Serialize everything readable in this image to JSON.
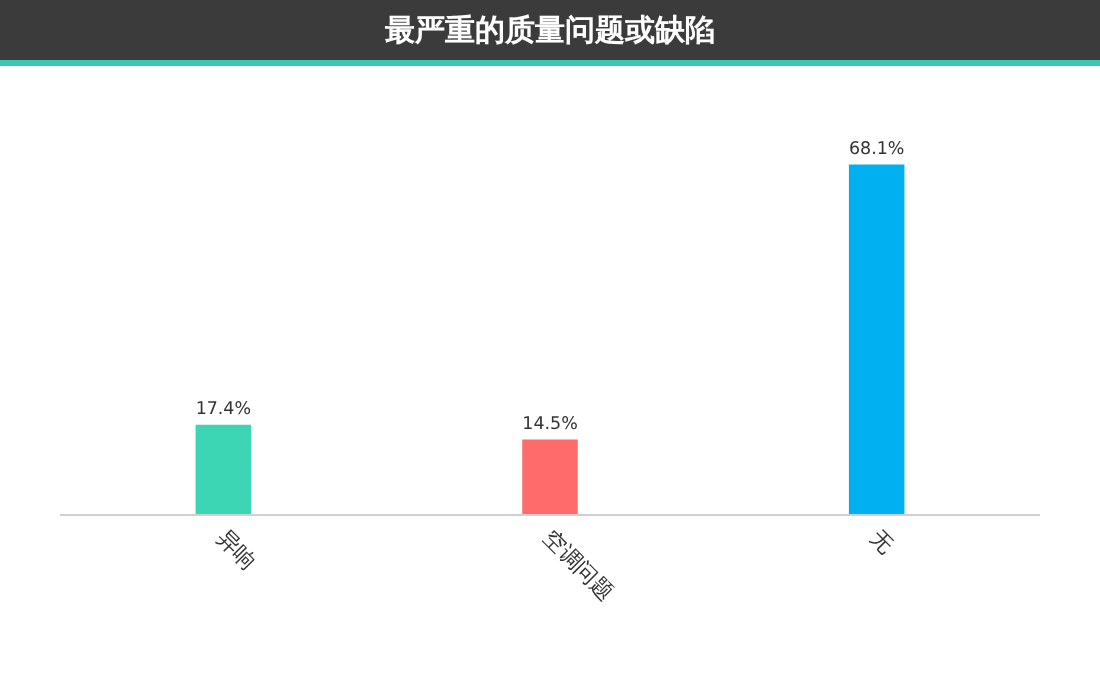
{
  "chart_data": {
    "type": "bar",
    "title": "最严重的质量问题或缺陷",
    "categories": [
      "异响",
      "空调问题",
      "无"
    ],
    "values": [
      17.4,
      14.5,
      68.1
    ],
    "colors": [
      "#3dd6b5",
      "#ff6b6b",
      "#00b0f0"
    ],
    "value_labels": [
      "17.4%",
      "14.5%",
      "68.1%"
    ]
  }
}
